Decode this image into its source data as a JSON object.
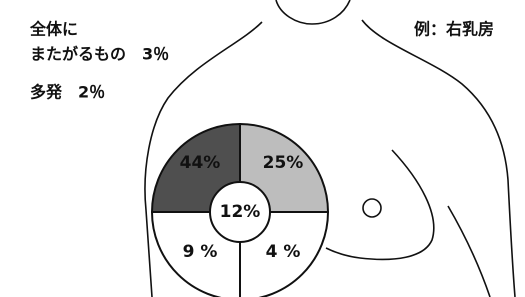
{
  "labels": {
    "line1": "全体に",
    "line2": "またがるもの　3％",
    "line3": "多発　2％",
    "example": "例：右乳房"
  },
  "quadrants": {
    "upper_outer": "44%",
    "upper_inner": "25%",
    "lower_outer": "9 %",
    "lower_inner": "4 %"
  },
  "center": "12%"
}
